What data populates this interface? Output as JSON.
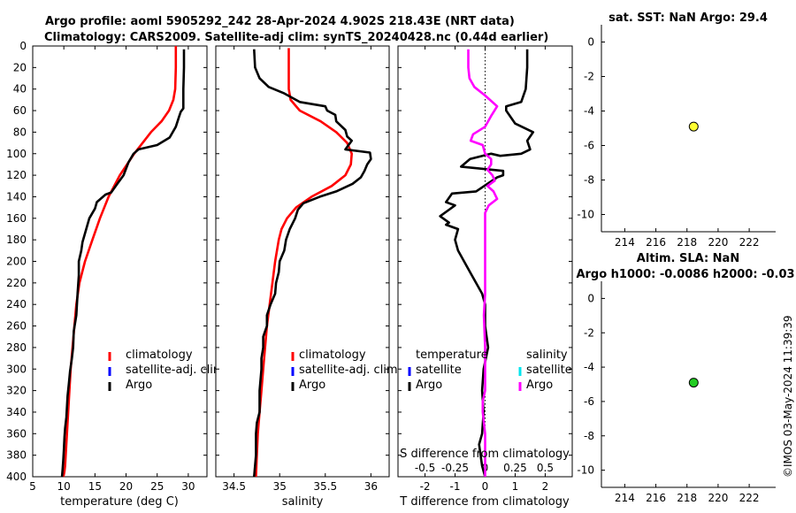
{
  "title": {
    "line1": "Argo profile: aoml 5905292_242 28-Apr-2024 4.902S 218.43E (NRT data)",
    "line2": "Climatology: CARS2009. Satellite-adj clim: synTS_20240428.nc (0.44d earlier)"
  },
  "timestamp": "©IMOS 03-May-2024 11:39:39",
  "colors": {
    "climatology": "#ff0000",
    "satellite": "#0000ff",
    "argo": "#000000",
    "sal_satellite": "#00e5ee",
    "sal_argo": "#ff00ff",
    "sst_marker": "#ffff33",
    "sla_marker": "#22cc22"
  },
  "chart_data": [
    {
      "id": "temperature",
      "type": "line",
      "xlabel": "temperature (deg C)",
      "ylabel": "",
      "xlim": [
        5,
        33
      ],
      "ylim": [
        400,
        0
      ],
      "xticks": [
        5,
        10,
        15,
        20,
        25,
        30
      ],
      "yticks": [
        0,
        20,
        40,
        60,
        80,
        100,
        120,
        140,
        160,
        180,
        200,
        220,
        240,
        260,
        280,
        300,
        320,
        340,
        360,
        380,
        400
      ],
      "legend": [
        "climatology",
        "satellite-adj. clim",
        "Argo"
      ],
      "series": [
        {
          "name": "climatology",
          "color": "#ff0000",
          "x": [
            28.0,
            28.0,
            27.9,
            27.6,
            26.9,
            25.7,
            24.0,
            21.3,
            19.0,
            17.2,
            15.8,
            14.6,
            13.4,
            12.5,
            12.0,
            11.7,
            11.4,
            11.1,
            10.9,
            10.7,
            10.5,
            10.3,
            10.2,
            10.1,
            10.0,
            9.9
          ],
          "y": [
            0,
            20,
            40,
            50,
            60,
            70,
            80,
            100,
            120,
            140,
            160,
            180,
            200,
            220,
            240,
            260,
            280,
            300,
            320,
            340,
            360,
            380,
            390,
            395,
            398,
            400
          ]
        },
        {
          "name": "Argo",
          "color": "#000000",
          "x": [
            29.3,
            29.3,
            29.2,
            29.2,
            28.8,
            28.5,
            28.0,
            27.0,
            25.0,
            22.0,
            21.2,
            20.4,
            19.6,
            18.6,
            17.6,
            16.7,
            15.3,
            15.0,
            14.1,
            13.6,
            13.0,
            12.8,
            12.4,
            12.4,
            12.2,
            12.0,
            11.6,
            11.5,
            11.3,
            11.0,
            10.8,
            10.6,
            10.5,
            10.4,
            10.2,
            10.1,
            10.0,
            9.9,
            9.8,
            9.7
          ],
          "y": [
            3,
            20,
            40,
            58,
            61,
            66,
            75,
            85,
            92,
            96,
            100,
            108,
            120,
            128,
            136,
            138,
            145,
            151,
            160,
            170,
            182,
            190,
            200,
            213,
            230,
            250,
            265,
            280,
            290,
            302,
            314,
            325,
            335,
            345,
            355,
            363,
            375,
            385,
            393,
            400
          ]
        }
      ]
    },
    {
      "id": "salinity",
      "type": "line",
      "xlabel": "salinity",
      "ylabel": "",
      "xlim": [
        34.3,
        36.2
      ],
      "ylim": [
        400,
        0
      ],
      "xticks": [
        34.5,
        35,
        35.5,
        36
      ],
      "legend": [
        "climatology",
        "satellite-adj. clim",
        "Argo"
      ],
      "series": [
        {
          "name": "climatology",
          "color": "#ff0000",
          "x": [
            35.1,
            35.1,
            35.1,
            35.12,
            35.22,
            35.45,
            35.62,
            35.74,
            35.79,
            35.78,
            35.72,
            35.57,
            35.35,
            35.18,
            35.08,
            35.02,
            34.99,
            34.95,
            34.92,
            34.89,
            34.86,
            34.84,
            34.82,
            34.8,
            34.78,
            34.76,
            34.75,
            34.74
          ],
          "y": [
            2,
            20,
            40,
            50,
            60,
            70,
            80,
            90,
            100,
            110,
            120,
            130,
            140,
            150,
            160,
            170,
            180,
            200,
            220,
            240,
            260,
            280,
            300,
            320,
            340,
            360,
            380,
            400
          ]
        },
        {
          "name": "Argo",
          "color": "#000000",
          "x": [
            34.72,
            34.73,
            34.78,
            34.88,
            35.05,
            35.22,
            35.5,
            35.52,
            35.61,
            35.62,
            35.72,
            35.74,
            35.79,
            35.72,
            35.99,
            36.0,
            35.96,
            35.93,
            35.89,
            35.8,
            35.62,
            35.44,
            35.26,
            35.2,
            35.17,
            35.11,
            35.07,
            35.05,
            35.0,
            34.99,
            34.96,
            34.95,
            34.9,
            34.86,
            34.86,
            34.82,
            34.82,
            34.8,
            34.8,
            34.78,
            34.78,
            34.75,
            34.74,
            34.74,
            34.74,
            34.72
          ],
          "y": [
            3,
            20,
            30,
            38,
            44,
            52,
            56,
            60,
            64,
            70,
            78,
            84,
            88,
            96,
            99,
            105,
            110,
            116,
            122,
            128,
            135,
            140,
            146,
            152,
            160,
            170,
            180,
            190,
            200,
            210,
            220,
            230,
            240,
            250,
            260,
            270,
            280,
            290,
            300,
            320,
            340,
            350,
            360,
            370,
            380,
            400
          ]
        }
      ]
    },
    {
      "id": "difference",
      "type": "line",
      "xlabel": "T difference from climatology",
      "top_label": "S difference from climatology",
      "xlim": [
        -2.9,
        2.9
      ],
      "ylim": [
        400,
        0
      ],
      "xticks": [
        -2,
        -1,
        0,
        1,
        2
      ],
      "s_xlim": [
        -0.725,
        0.725
      ],
      "s_xticks": [
        -0.5,
        -0.25,
        0,
        0.25,
        0.5
      ],
      "s_ticklabels": [
        "-0.5",
        "-0.25",
        "0",
        "0.25",
        "0.5"
      ],
      "legend_temperature_title": "temperature",
      "legend_salinity_title": "salinity",
      "legend_temperature": [
        "satellite",
        "Argo"
      ],
      "legend_salinity": [
        "satellite",
        "Argo"
      ],
      "series": [
        {
          "name": "T diff Argo",
          "color": "#000000",
          "x": [
            1.4,
            1.4,
            1.35,
            1.2,
            0.7,
            0.7,
            1.0,
            1.6,
            1.4,
            1.5,
            1.2,
            0.5,
            0.2,
            -0.5,
            -0.8,
            0.6,
            0.6,
            0.4,
            -0.3,
            -1.1,
            -1.3,
            -1.0,
            -1.5,
            -1.2,
            -1.3,
            -0.9,
            -1.0,
            -0.9,
            -0.7,
            -0.5,
            -0.3,
            -0.1,
            0.0,
            0.0,
            0.1,
            -0.05,
            -0.1,
            -0.05,
            -0.1,
            -0.2,
            -0.15,
            -0.1,
            0.0
          ],
          "y": [
            3,
            20,
            40,
            52,
            56,
            60,
            72,
            80,
            88,
            96,
            100,
            102,
            100,
            105,
            112,
            116,
            120,
            122,
            135,
            137,
            145,
            148,
            158,
            164,
            166,
            170,
            180,
            190,
            200,
            210,
            220,
            230,
            240,
            260,
            280,
            300,
            320,
            340,
            360,
            370,
            380,
            390,
            400
          ]
        },
        {
          "name": "S diff Argo",
          "color": "#ff00ff",
          "x": [
            -0.14,
            -0.14,
            -0.13,
            -0.09,
            0.0,
            0.1,
            0.05,
            0.0,
            -0.1,
            -0.12,
            -0.02,
            0.0,
            0.05,
            0.05,
            0.02,
            0.06,
            0.08,
            0.02,
            0.07,
            0.1,
            0.03,
            0.0,
            0.0,
            0.0,
            0.0,
            -0.01,
            0.0,
            0.0,
            0.0,
            -0.02,
            -0.02,
            0.0,
            0.0,
            0.0,
            0.0
          ],
          "y": [
            3,
            20,
            30,
            38,
            46,
            56,
            65,
            75,
            82,
            88,
            92,
            100,
            105,
            110,
            115,
            120,
            125,
            130,
            135,
            142,
            148,
            155,
            170,
            200,
            230,
            250,
            280,
            300,
            320,
            330,
            340,
            360,
            380,
            390,
            400
          ]
        }
      ]
    },
    {
      "id": "sst_map",
      "type": "scatter",
      "title": "sat. SST: NaN Argo: 29.4",
      "xlim": [
        212.5,
        223.7
      ],
      "ylim": [
        -11,
        1
      ],
      "xticks": [
        214,
        216,
        218,
        220,
        222
      ],
      "yticks": [
        0,
        -2,
        -4,
        -6,
        -8,
        -10
      ],
      "points": [
        {
          "x": 218.43,
          "y": -4.902,
          "color": "#ffff33"
        }
      ]
    },
    {
      "id": "sla_map",
      "type": "scatter",
      "title_line1": "Altim. SLA: NaN",
      "title_line2": "Argo h1000: -0.0086 h2000: -0.03",
      "xlim": [
        212.5,
        223.7
      ],
      "ylim": [
        -11,
        1
      ],
      "xticks": [
        214,
        216,
        218,
        220,
        222
      ],
      "yticks": [
        0,
        -2,
        -4,
        -6,
        -8,
        -10
      ],
      "points": [
        {
          "x": 218.43,
          "y": -4.902,
          "color": "#22cc22"
        }
      ]
    }
  ]
}
